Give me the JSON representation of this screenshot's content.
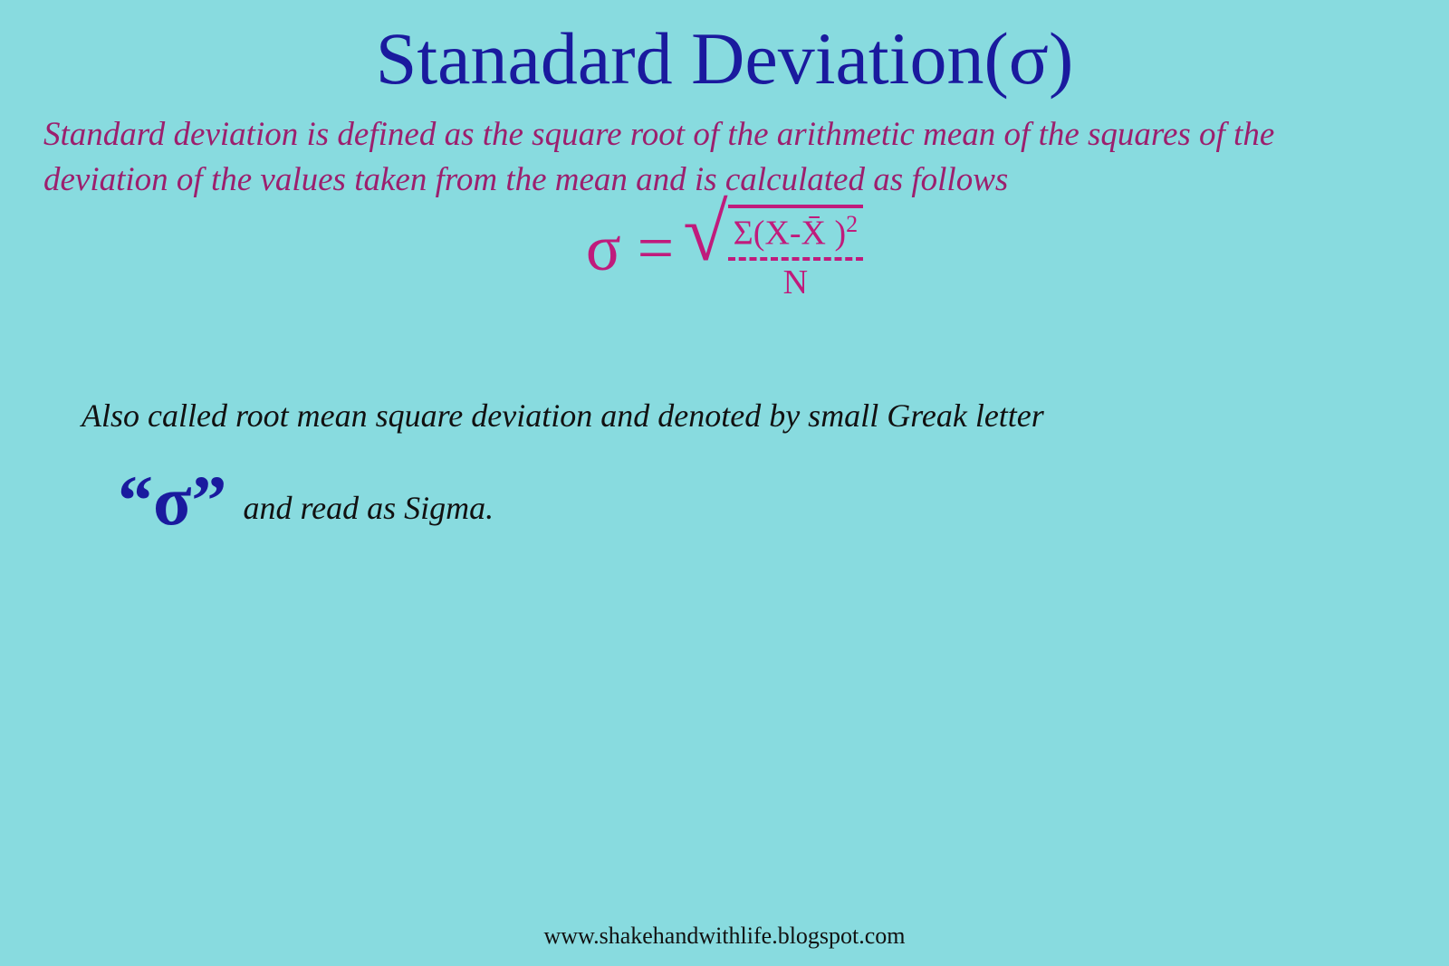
{
  "colors": {
    "background": "#88dbdf",
    "title": "#1a1a9e",
    "definition": "#9c1f6e",
    "formula": "#c01b7c",
    "body_text": "#111111"
  },
  "typography": {
    "title_fontsize": 82,
    "definition_fontsize": 37,
    "formula_sigma_fontsize": 72,
    "formula_frac_fontsize": 38,
    "note_fontsize": 36,
    "big_sigma_fontsize": 78,
    "footer_fontsize": 26,
    "font_family": "Georgia, serif"
  },
  "title": "Stanadard Deviation(σ)",
  "definition": "Standard deviation is defined as the square root of the arithmetic mean of the squares of the deviation of the values taken from the mean and is calculated as follows",
  "formula": {
    "lhs": "σ =",
    "numerator": "Σ(X-X̄ )",
    "numerator_sup": "2",
    "denominator": "N"
  },
  "note": "Also called root mean square deviation and denoted by small Greak letter",
  "sigma_quote": "“σ”",
  "read_as": "and read as Sigma.",
  "footer": "www.shakehandwithlife.blogspot.com"
}
